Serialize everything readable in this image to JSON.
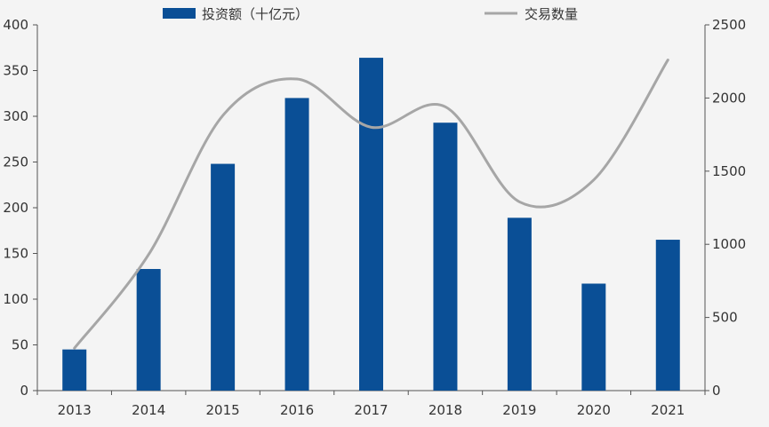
{
  "chart_data": {
    "type": "bar",
    "categories": [
      "2013",
      "2014",
      "2015",
      "2016",
      "2017",
      "2018",
      "2019",
      "2020",
      "2021"
    ],
    "series": [
      {
        "name": "投资额（十亿元）",
        "type": "bar",
        "axis": "left",
        "color": "#0a4f96",
        "values": [
          45,
          133,
          248,
          320,
          364,
          293,
          189,
          117,
          165
        ]
      },
      {
        "name": "交易数量",
        "type": "line",
        "axis": "right",
        "color": "#a6a6a6",
        "values": [
          290,
          930,
          1880,
          2130,
          1800,
          1940,
          1290,
          1440,
          2260
        ]
      }
    ],
    "y_left": {
      "min": 0,
      "max": 400,
      "ticks": [
        "0",
        "50",
        "100",
        "150",
        "200",
        "250",
        "300",
        "350",
        "400"
      ]
    },
    "y_right": {
      "min": 0,
      "max": 2500,
      "ticks": [
        "0",
        "500",
        "1000",
        "1500",
        "2000",
        "2500"
      ]
    },
    "grid": false,
    "legend_position": "top"
  }
}
